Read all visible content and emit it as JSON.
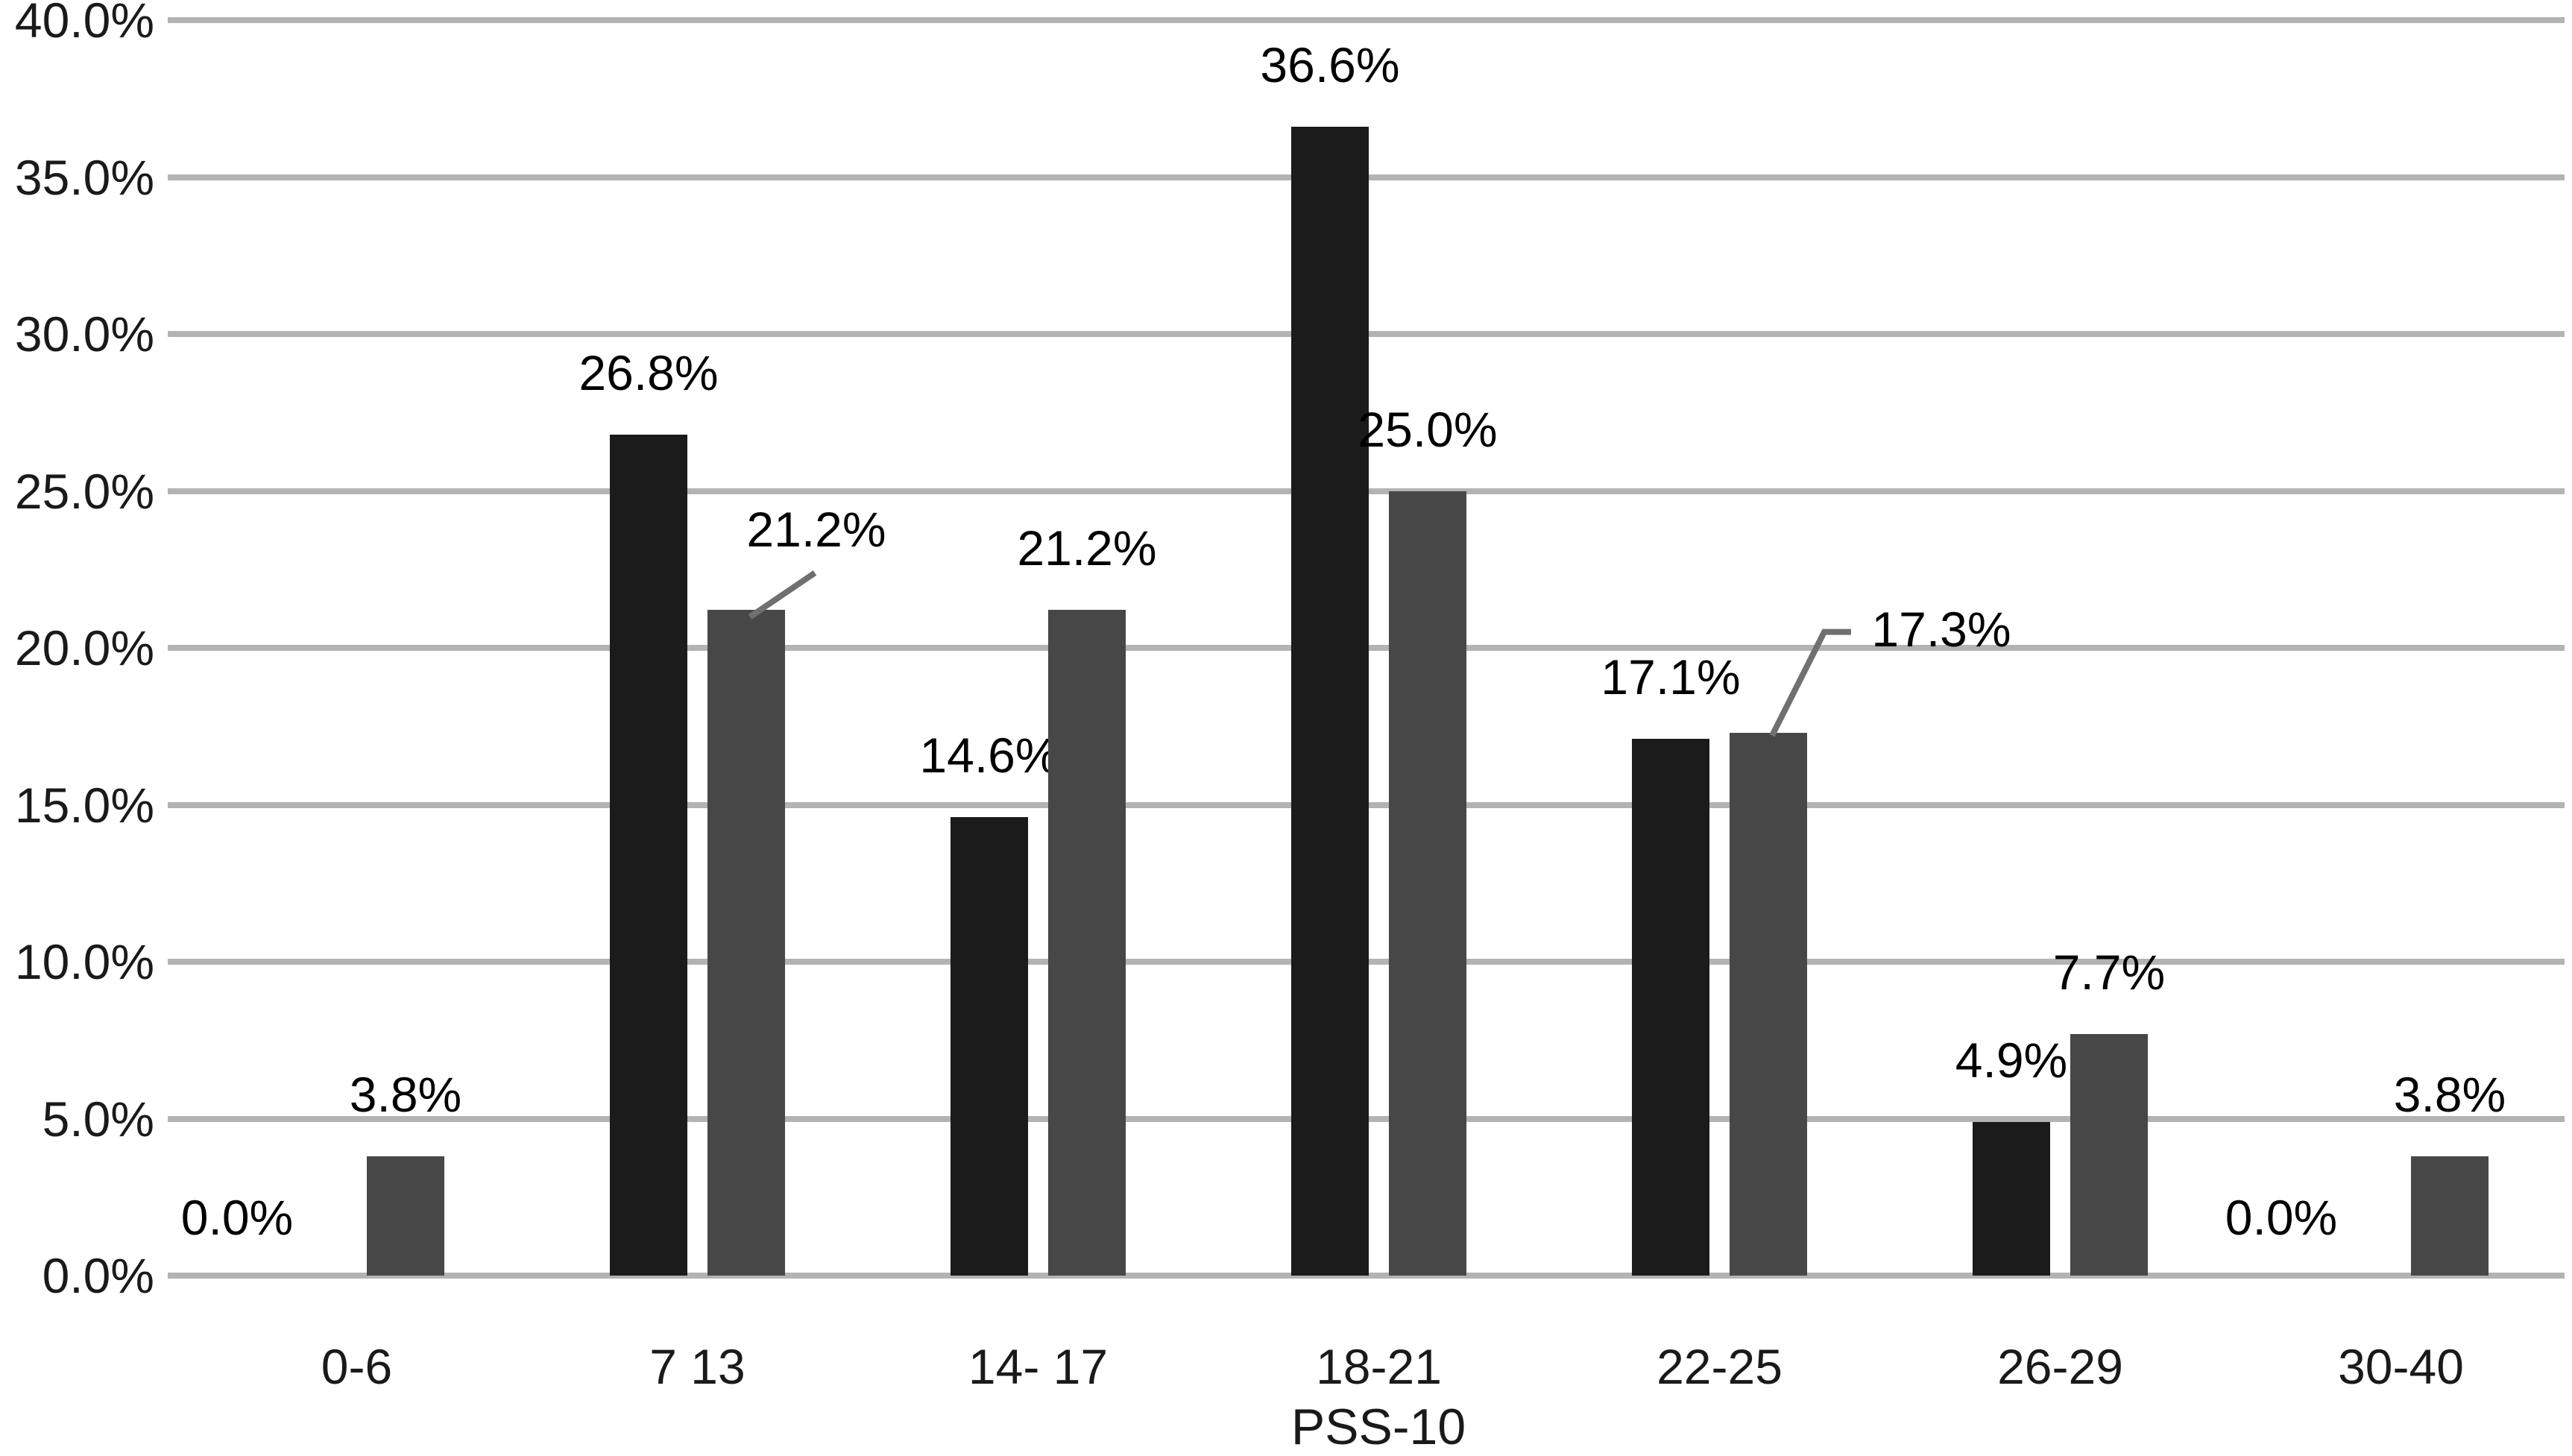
{
  "chart_data": {
    "type": "bar",
    "title": "",
    "xlabel": "PSS-10",
    "ylabel": "",
    "categories": [
      "0-6",
      "7 13",
      "14- 17",
      "18-21",
      "22-25",
      "26-29",
      "30-40"
    ],
    "series": [
      {
        "name": "series-1-black",
        "color": "#1b1b1b",
        "values": [
          0.0,
          26.8,
          14.6,
          36.6,
          17.1,
          4.9,
          0.0
        ],
        "labels": [
          "0.0%",
          "26.8%",
          "14.6%",
          "36.6%",
          "17.1%",
          "4.9%",
          "0.0%"
        ]
      },
      {
        "name": "series-2-gray",
        "color": "#474747",
        "values": [
          3.8,
          21.2,
          21.2,
          25.0,
          17.3,
          7.7,
          3.8
        ],
        "labels": [
          "3.8%",
          "21.2%",
          "21.2%",
          "25.0%",
          "17.3%",
          "7.7%",
          "3.8%"
        ]
      }
    ],
    "y_axis": {
      "min": 0,
      "max": 40,
      "step": 5,
      "tick_labels": [
        "0.0%",
        "5.0%",
        "10.0%",
        "15.0%",
        "20.0%",
        "25.0%",
        "30.0%",
        "35.0%",
        "40.0%"
      ]
    },
    "grid": true,
    "legend": "none",
    "callouts": [
      {
        "series": 1,
        "index": 1,
        "label": "21.2%",
        "shape": "straight"
      },
      {
        "series": 1,
        "index": 4,
        "label": "17.3%",
        "shape": "jog"
      }
    ]
  },
  "colors": {
    "background": "#ffffff",
    "gridline": "#b3b3b3",
    "leader_line": "#707070",
    "text": "#1a1a1a"
  }
}
